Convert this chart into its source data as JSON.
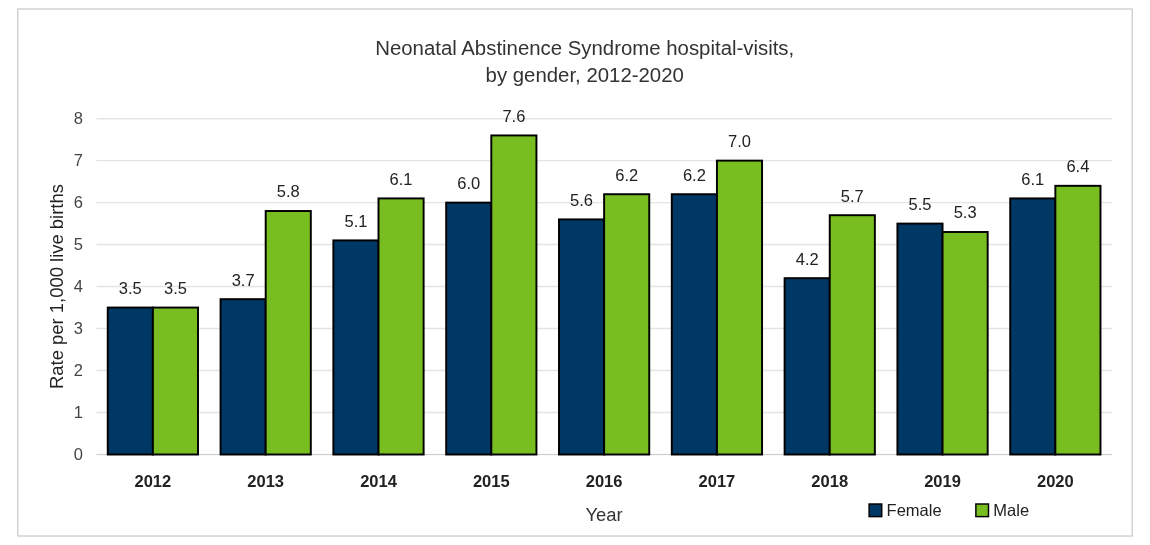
{
  "chart_data": {
    "type": "bar",
    "title": "Neonatal Abstinence Syndrome hospital-visits,\nby gender, 2012-2020",
    "xlabel": "Year",
    "ylabel": "Rate per 1,000 live births",
    "categories": [
      "2012",
      "2013",
      "2014",
      "2015",
      "2016",
      "2017",
      "2018",
      "2019",
      "2020"
    ],
    "series": [
      {
        "name": "Female",
        "color": "#003865",
        "values": [
          3.5,
          3.7,
          5.1,
          6.0,
          5.6,
          6.2,
          4.2,
          5.5,
          6.1
        ],
        "value_labels": [
          "3.5",
          "3.7",
          "5.1",
          "6.0",
          "5.6",
          "6.2",
          "4.2",
          "5.5",
          "6.1"
        ]
      },
      {
        "name": "Male",
        "color": "#78be21",
        "values": [
          3.5,
          5.8,
          6.1,
          7.6,
          6.2,
          7.0,
          5.7,
          5.3,
          6.4
        ],
        "value_labels": [
          "3.5",
          "5.8",
          "6.1",
          "7.6",
          "6.2",
          "7.0",
          "5.7",
          "5.3",
          "6.4"
        ]
      }
    ],
    "ylim": [
      0,
      8
    ],
    "yticks": [
      0,
      1,
      2,
      3,
      4,
      5,
      6,
      7,
      8
    ],
    "grid": "y",
    "legend": "bottom right"
  }
}
